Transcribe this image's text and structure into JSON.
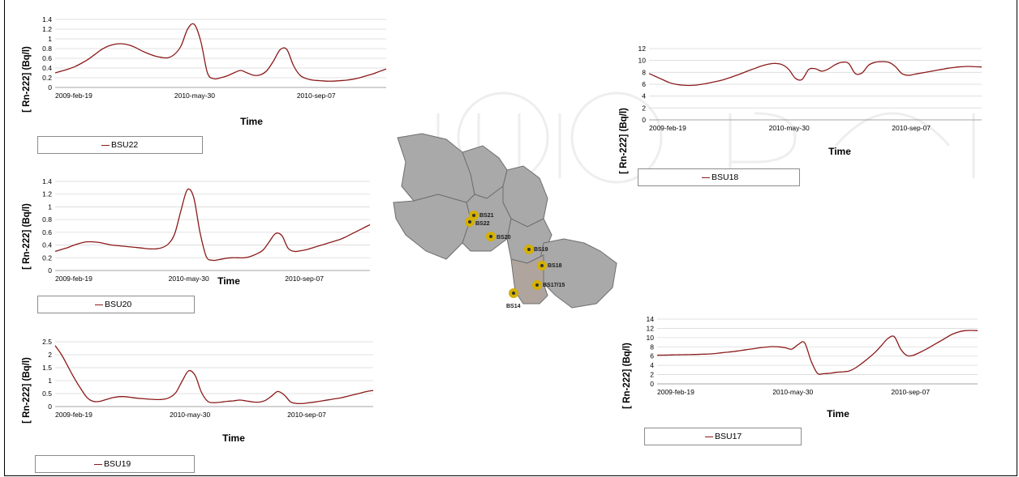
{
  "chart_data": [
    {
      "id": "bsu22",
      "type": "line",
      "series": [
        {
          "name": "BSU22",
          "color": "#8b1a1a"
        }
      ],
      "x": [
        0,
        2,
        4,
        6,
        8,
        10,
        12,
        14,
        16,
        18,
        20,
        22,
        24,
        26,
        28,
        30,
        32,
        34,
        36,
        38,
        40,
        42,
        44,
        46,
        48,
        50,
        52,
        54,
        56,
        58,
        60,
        62,
        64,
        66,
        68,
        70,
        72,
        74,
        76,
        78,
        80,
        82,
        84,
        86,
        88,
        90,
        92,
        94,
        96,
        98,
        100
      ],
      "values": [
        0.3,
        0.34,
        0.38,
        0.43,
        0.5,
        0.58,
        0.68,
        0.78,
        0.85,
        0.89,
        0.9,
        0.88,
        0.83,
        0.76,
        0.7,
        0.65,
        0.62,
        0.61,
        0.68,
        0.85,
        1.2,
        1.3,
        0.95,
        0.3,
        0.18,
        0.2,
        0.24,
        0.3,
        0.35,
        0.3,
        0.25,
        0.26,
        0.35,
        0.55,
        0.78,
        0.78,
        0.45,
        0.25,
        0.18,
        0.15,
        0.14,
        0.13,
        0.13,
        0.14,
        0.15,
        0.17,
        0.2,
        0.24,
        0.28,
        0.33,
        0.38
      ],
      "ylim": [
        0,
        1.4
      ],
      "yticks": [
        "0",
        "0.2",
        "0.4",
        "0.6",
        "0.8",
        "1",
        "1.2",
        "1.4"
      ],
      "xticks": [
        "2009-feb-19",
        "2010-may-30",
        "2010-sep-07"
      ],
      "xlabel": "Time",
      "ylabel": "[ Rn-222]   (Bq/l)",
      "legend": "BSU22"
    },
    {
      "id": "bsu20",
      "type": "line",
      "series": [
        {
          "name": "BSU20",
          "color": "#8b1a1a"
        }
      ],
      "x": [
        0,
        2,
        4,
        6,
        8,
        10,
        12,
        14,
        16,
        18,
        20,
        22,
        24,
        26,
        28,
        30,
        32,
        34,
        36,
        38,
        40,
        42,
        44,
        46,
        48,
        50,
        52,
        54,
        56,
        58,
        60,
        62,
        64,
        66,
        68,
        70,
        72,
        74,
        76,
        78,
        80,
        82,
        84,
        86,
        88,
        90,
        92,
        94,
        96,
        98,
        100
      ],
      "values": [
        0.3,
        0.33,
        0.36,
        0.4,
        0.43,
        0.45,
        0.45,
        0.44,
        0.42,
        0.4,
        0.39,
        0.38,
        0.37,
        0.36,
        0.35,
        0.34,
        0.34,
        0.36,
        0.42,
        0.58,
        0.95,
        1.27,
        1.15,
        0.6,
        0.22,
        0.16,
        0.17,
        0.19,
        0.2,
        0.2,
        0.2,
        0.22,
        0.26,
        0.32,
        0.45,
        0.58,
        0.55,
        0.35,
        0.3,
        0.31,
        0.33,
        0.36,
        0.39,
        0.42,
        0.45,
        0.48,
        0.52,
        0.57,
        0.62,
        0.67,
        0.72
      ],
      "ylim": [
        0,
        1.4
      ],
      "yticks": [
        "0",
        "0.2",
        "0.4",
        "0.6",
        "0.8",
        "1",
        "1.2",
        "1.4"
      ],
      "xticks": [
        "2009-feb-19",
        "2010-may-30",
        "2010-sep-07"
      ],
      "xlabel": "Time",
      "ylabel": "[ Rn-222]   (Bq/l)",
      "legend": "BSU20"
    },
    {
      "id": "bsu19",
      "type": "line",
      "series": [
        {
          "name": "BSU19",
          "color": "#8b1a1a"
        }
      ],
      "x": [
        0,
        2,
        4,
        6,
        8,
        10,
        12,
        14,
        16,
        18,
        20,
        22,
        24,
        26,
        28,
        30,
        32,
        34,
        36,
        38,
        40,
        42,
        44,
        46,
        48,
        50,
        52,
        54,
        56,
        58,
        60,
        62,
        64,
        66,
        68,
        70,
        72,
        74,
        76,
        78,
        80,
        82,
        84,
        86,
        88,
        90,
        92,
        94,
        96,
        98,
        100
      ],
      "values": [
        2.35,
        2.0,
        1.55,
        1.1,
        0.7,
        0.35,
        0.2,
        0.2,
        0.27,
        0.34,
        0.38,
        0.38,
        0.35,
        0.32,
        0.3,
        0.28,
        0.27,
        0.28,
        0.35,
        0.55,
        1.0,
        1.38,
        1.2,
        0.55,
        0.2,
        0.15,
        0.17,
        0.2,
        0.22,
        0.25,
        0.22,
        0.18,
        0.17,
        0.23,
        0.4,
        0.58,
        0.45,
        0.18,
        0.12,
        0.12,
        0.15,
        0.18,
        0.22,
        0.26,
        0.3,
        0.34,
        0.4,
        0.46,
        0.52,
        0.58,
        0.62
      ],
      "ylim": [
        0,
        2.5
      ],
      "yticks": [
        "0",
        "0.5",
        "1",
        "1.5",
        "2",
        "2.5"
      ],
      "xticks": [
        "2009-feb-19",
        "2010-may-30",
        "2010-sep-07"
      ],
      "xlabel": "Time",
      "ylabel": "[ Rn-222]   (Bq/l)",
      "legend": "BSU19"
    },
    {
      "id": "bsu18",
      "type": "line",
      "series": [
        {
          "name": "BSU18",
          "color": "#8b1a1a"
        }
      ],
      "x": [
        0,
        2,
        4,
        6,
        8,
        10,
        12,
        14,
        16,
        18,
        20,
        22,
        24,
        26,
        28,
        30,
        32,
        34,
        36,
        38,
        40,
        42,
        44,
        46,
        48,
        50,
        52,
        54,
        56,
        58,
        60,
        62,
        64,
        66,
        68,
        70,
        72,
        74,
        76,
        78,
        80,
        82,
        84,
        86,
        88,
        90,
        92,
        94,
        96,
        98,
        100
      ],
      "values": [
        7.8,
        7.3,
        6.8,
        6.3,
        6.0,
        5.85,
        5.8,
        5.85,
        6.0,
        6.2,
        6.45,
        6.7,
        7.05,
        7.45,
        7.85,
        8.3,
        8.7,
        9.1,
        9.4,
        9.5,
        9.3,
        8.5,
        7.0,
        6.8,
        8.5,
        8.6,
        8.2,
        8.6,
        9.3,
        9.7,
        9.5,
        7.8,
        7.9,
        9.2,
        9.7,
        9.8,
        9.7,
        9.0,
        7.8,
        7.5,
        7.7,
        7.9,
        8.1,
        8.3,
        8.5,
        8.7,
        8.85,
        8.95,
        9.0,
        8.95,
        8.9
      ],
      "ylim": [
        0,
        12
      ],
      "yticks": [
        "0",
        "2",
        "4",
        "6",
        "8",
        "10",
        "12"
      ],
      "xticks": [
        "2009-feb-19",
        "2010-may-30",
        "2010-sep-07"
      ],
      "xlabel": "Time",
      "ylabel": "[ Rn-222]   (Bq/l)",
      "legend": "BSU18"
    },
    {
      "id": "bsu17",
      "type": "line",
      "series": [
        {
          "name": "BSU17",
          "color": "#8b1a1a"
        }
      ],
      "x": [
        0,
        2,
        4,
        6,
        8,
        10,
        12,
        14,
        16,
        18,
        20,
        22,
        24,
        26,
        28,
        30,
        32,
        34,
        36,
        38,
        40,
        42,
        44,
        46,
        48,
        50,
        52,
        54,
        56,
        58,
        60,
        62,
        64,
        66,
        68,
        70,
        72,
        74,
        76,
        78,
        80,
        82,
        84,
        86,
        88,
        90,
        92,
        94,
        96,
        98,
        100
      ],
      "values": [
        6.2,
        6.22,
        6.25,
        6.28,
        6.3,
        6.32,
        6.35,
        6.4,
        6.45,
        6.55,
        6.7,
        6.85,
        7.0,
        7.2,
        7.4,
        7.6,
        7.8,
        7.95,
        8.05,
        8.0,
        7.8,
        7.5,
        8.5,
        8.9,
        5.0,
        2.3,
        2.2,
        2.3,
        2.5,
        2.6,
        2.8,
        3.5,
        4.5,
        5.6,
        6.8,
        8.3,
        9.8,
        10.2,
        7.5,
        6.1,
        6.2,
        6.8,
        7.5,
        8.3,
        9.1,
        9.9,
        10.7,
        11.2,
        11.5,
        11.55,
        11.5
      ],
      "ylim": [
        0,
        14
      ],
      "yticks": [
        "0",
        "2",
        "4",
        "6",
        "8",
        "10",
        "12",
        "14"
      ],
      "xticks": [
        "2009-feb-19",
        "2010-may-30",
        "2010-sep-07"
      ],
      "xlabel": "Time",
      "ylabel": "[ Rn-222]   (Bq/l)",
      "legend": "BSU17"
    }
  ],
  "map": {
    "labels": [
      "BS21",
      "BS22",
      "BS20",
      "BS19",
      "BS18",
      "BS17/15",
      "BS14"
    ],
    "colors": {
      "region": "#a9a9a9",
      "border": "#6e6e6e",
      "marker": "#d4b000",
      "marker_center": "#333333"
    }
  }
}
